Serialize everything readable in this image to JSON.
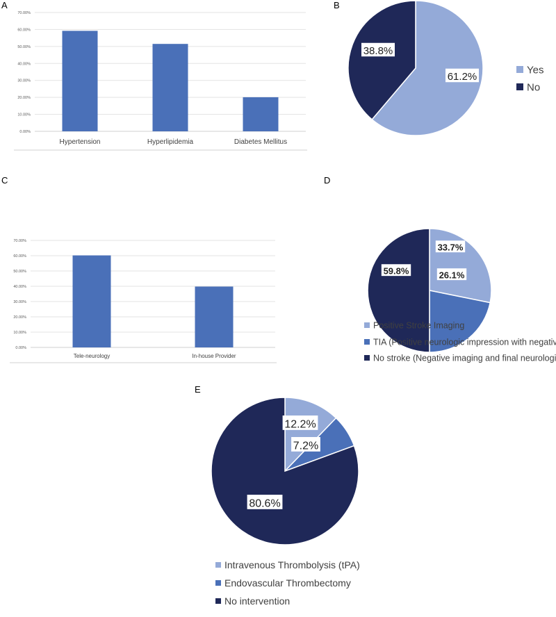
{
  "colors": {
    "light": "#94aad8",
    "medium": "#4a70b8",
    "dark": "#1f2858",
    "bar": "#4a70b8",
    "grid": "#e3e3e3"
  },
  "chart_data": [
    {
      "panel": "A",
      "type": "bar",
      "categories": [
        "Hypertension",
        "Hyperlipidemia",
        "Diabetes Mellitus"
      ],
      "values": [
        59.2,
        51.5,
        20.1
      ],
      "ylim": [
        0,
        70
      ],
      "yticks": [
        "0.00%",
        "10.00%",
        "20.00%",
        "30.00%",
        "40.00%",
        "50.00%",
        "60.00%",
        "70.00%"
      ],
      "grid": true
    },
    {
      "panel": "B",
      "type": "pie",
      "labels": [
        "Yes",
        "No"
      ],
      "values": [
        61.2,
        38.8
      ],
      "data_labels": [
        "61.2%",
        "38.8%"
      ],
      "legend": "right"
    },
    {
      "panel": "C",
      "type": "bar",
      "categories": [
        "Tele-neurology",
        "In-house Provider"
      ],
      "values": [
        60.2,
        39.8
      ],
      "ylim": [
        0,
        70
      ],
      "yticks": [
        "0.00%",
        "10.00%",
        "20.00%",
        "30.00%",
        "40.00%",
        "50.00%",
        "60.00%",
        "70.00%"
      ],
      "grid": true
    },
    {
      "panel": "D",
      "type": "pie",
      "labels": [
        "Positive Stroke Imaging",
        "TIA (Positive neurologic impression with negative imaging)",
        "No stroke (Negative imaging and final neurologic impression)"
      ],
      "values": [
        33.7,
        26.1,
        59.8
      ],
      "data_labels": [
        "33.7%",
        "26.1%",
        "59.8%"
      ],
      "legend": "bottom"
    },
    {
      "panel": "E",
      "type": "pie",
      "labels": [
        "Intravenous Thrombolysis (tPA)",
        "Endovascular Thrombectomy",
        "No intervention"
      ],
      "values": [
        12.2,
        7.2,
        80.6
      ],
      "data_labels": [
        "12.2%",
        "7.2%",
        "80.6%"
      ],
      "legend": "bottom"
    }
  ]
}
